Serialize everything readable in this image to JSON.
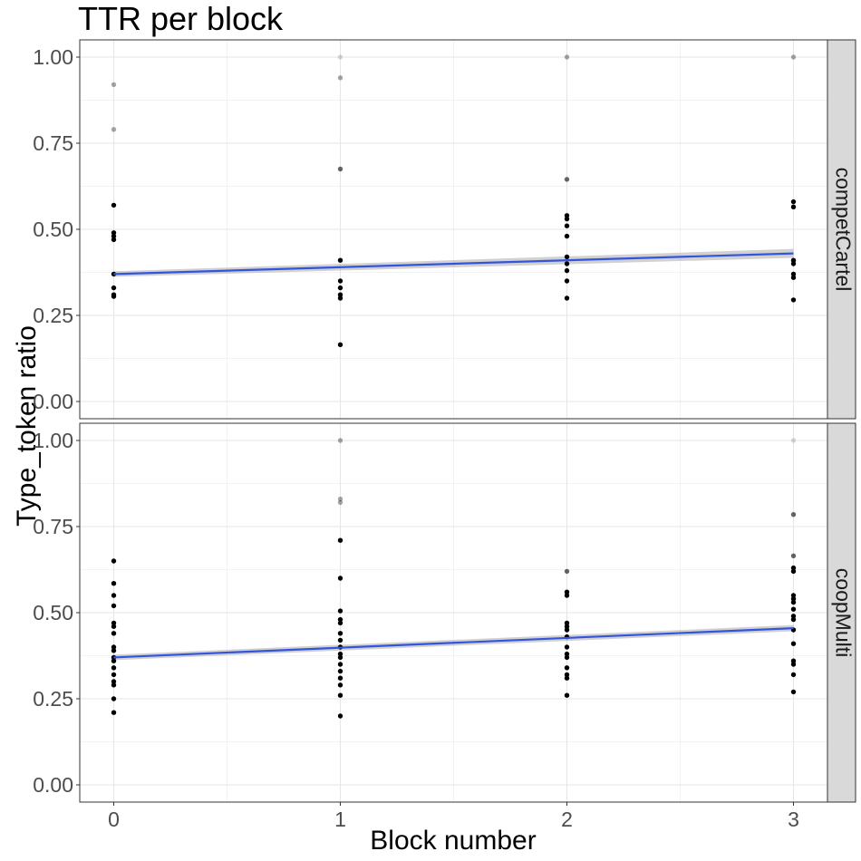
{
  "chart_data": {
    "type": "scatter",
    "title": "TTR per block",
    "xlabel": "Block number",
    "ylabel": "Type_token ratio",
    "xlim": [
      -0.15,
      3.15
    ],
    "ylim": [
      -0.05,
      1.05
    ],
    "x_ticks": [
      "0",
      "1",
      "2",
      "3"
    ],
    "y_ticks": [
      "0.00",
      "0.25",
      "0.50",
      "0.75",
      "1.00"
    ],
    "grid": true,
    "trend_color": "#3355dd",
    "panels": [
      {
        "facet": "competCartel",
        "points": [
          {
            "x": 0,
            "y": 0.92,
            "a": 0.35
          },
          {
            "x": 0,
            "y": 0.79,
            "a": 0.35
          },
          {
            "x": 0,
            "y": 0.57,
            "a": 1
          },
          {
            "x": 0,
            "y": 0.49,
            "a": 1
          },
          {
            "x": 0,
            "y": 0.48,
            "a": 1
          },
          {
            "x": 0,
            "y": 0.47,
            "a": 1
          },
          {
            "x": 0,
            "y": 0.37,
            "a": 1
          },
          {
            "x": 0,
            "y": 0.33,
            "a": 1
          },
          {
            "x": 0,
            "y": 0.31,
            "a": 1
          },
          {
            "x": 0,
            "y": 0.305,
            "a": 1
          },
          {
            "x": 1,
            "y": 1.0,
            "a": 0.15
          },
          {
            "x": 1,
            "y": 0.94,
            "a": 0.35
          },
          {
            "x": 1,
            "y": 0.675,
            "a": 0.6
          },
          {
            "x": 1,
            "y": 0.41,
            "a": 1
          },
          {
            "x": 1,
            "y": 0.35,
            "a": 1
          },
          {
            "x": 1,
            "y": 0.33,
            "a": 1
          },
          {
            "x": 1,
            "y": 0.31,
            "a": 1
          },
          {
            "x": 1,
            "y": 0.3,
            "a": 1
          },
          {
            "x": 1,
            "y": 0.165,
            "a": 1
          },
          {
            "x": 2,
            "y": 1.0,
            "a": 0.35
          },
          {
            "x": 2,
            "y": 0.645,
            "a": 0.6
          },
          {
            "x": 2,
            "y": 0.54,
            "a": 1
          },
          {
            "x": 2,
            "y": 0.53,
            "a": 1
          },
          {
            "x": 2,
            "y": 0.51,
            "a": 1
          },
          {
            "x": 2,
            "y": 0.48,
            "a": 1
          },
          {
            "x": 2,
            "y": 0.42,
            "a": 1
          },
          {
            "x": 2,
            "y": 0.4,
            "a": 1
          },
          {
            "x": 2,
            "y": 0.38,
            "a": 1
          },
          {
            "x": 2,
            "y": 0.35,
            "a": 1
          },
          {
            "x": 2,
            "y": 0.3,
            "a": 1
          },
          {
            "x": 3,
            "y": 1.0,
            "a": 0.35
          },
          {
            "x": 3,
            "y": 0.58,
            "a": 1
          },
          {
            "x": 3,
            "y": 0.565,
            "a": 1
          },
          {
            "x": 3,
            "y": 0.41,
            "a": 1
          },
          {
            "x": 3,
            "y": 0.4,
            "a": 1
          },
          {
            "x": 3,
            "y": 0.37,
            "a": 1
          },
          {
            "x": 3,
            "y": 0.36,
            "a": 1
          },
          {
            "x": 3,
            "y": 0.295,
            "a": 1
          }
        ],
        "trend": {
          "x": [
            0,
            3
          ],
          "y": [
            0.37,
            0.43
          ]
        },
        "band": {
          "lower": [
            0.362,
            0.417
          ],
          "upper": [
            0.378,
            0.443
          ]
        }
      },
      {
        "facet": "coopMulti",
        "points": [
          {
            "x": 0,
            "y": 0.65,
            "a": 1
          },
          {
            "x": 0,
            "y": 0.585,
            "a": 1
          },
          {
            "x": 0,
            "y": 0.55,
            "a": 1
          },
          {
            "x": 0,
            "y": 0.52,
            "a": 1
          },
          {
            "x": 0,
            "y": 0.47,
            "a": 1
          },
          {
            "x": 0,
            "y": 0.46,
            "a": 1
          },
          {
            "x": 0,
            "y": 0.44,
            "a": 1
          },
          {
            "x": 0,
            "y": 0.4,
            "a": 1
          },
          {
            "x": 0,
            "y": 0.39,
            "a": 1
          },
          {
            "x": 0,
            "y": 0.37,
            "a": 1
          },
          {
            "x": 0,
            "y": 0.36,
            "a": 1
          },
          {
            "x": 0,
            "y": 0.34,
            "a": 1
          },
          {
            "x": 0,
            "y": 0.32,
            "a": 1
          },
          {
            "x": 0,
            "y": 0.3,
            "a": 1
          },
          {
            "x": 0,
            "y": 0.29,
            "a": 1
          },
          {
            "x": 0,
            "y": 0.25,
            "a": 1
          },
          {
            "x": 0,
            "y": 0.21,
            "a": 1
          },
          {
            "x": 1,
            "y": 1.0,
            "a": 0.35
          },
          {
            "x": 1,
            "y": 0.83,
            "a": 0.35
          },
          {
            "x": 1,
            "y": 0.82,
            "a": 0.35
          },
          {
            "x": 1,
            "y": 0.71,
            "a": 1
          },
          {
            "x": 1,
            "y": 0.6,
            "a": 1
          },
          {
            "x": 1,
            "y": 0.505,
            "a": 1
          },
          {
            "x": 1,
            "y": 0.48,
            "a": 1
          },
          {
            "x": 1,
            "y": 0.47,
            "a": 1
          },
          {
            "x": 1,
            "y": 0.44,
            "a": 1
          },
          {
            "x": 1,
            "y": 0.42,
            "a": 1
          },
          {
            "x": 1,
            "y": 0.4,
            "a": 1
          },
          {
            "x": 1,
            "y": 0.38,
            "a": 1
          },
          {
            "x": 1,
            "y": 0.37,
            "a": 1
          },
          {
            "x": 1,
            "y": 0.35,
            "a": 1
          },
          {
            "x": 1,
            "y": 0.33,
            "a": 1
          },
          {
            "x": 1,
            "y": 0.31,
            "a": 1
          },
          {
            "x": 1,
            "y": 0.29,
            "a": 1
          },
          {
            "x": 1,
            "y": 0.26,
            "a": 1
          },
          {
            "x": 1,
            "y": 0.2,
            "a": 1
          },
          {
            "x": 2,
            "y": 0.62,
            "a": 0.6
          },
          {
            "x": 2,
            "y": 0.56,
            "a": 1
          },
          {
            "x": 2,
            "y": 0.55,
            "a": 1
          },
          {
            "x": 2,
            "y": 0.47,
            "a": 1
          },
          {
            "x": 2,
            "y": 0.46,
            "a": 1
          },
          {
            "x": 2,
            "y": 0.45,
            "a": 1
          },
          {
            "x": 2,
            "y": 0.43,
            "a": 1
          },
          {
            "x": 2,
            "y": 0.4,
            "a": 1
          },
          {
            "x": 2,
            "y": 0.38,
            "a": 1
          },
          {
            "x": 2,
            "y": 0.37,
            "a": 1
          },
          {
            "x": 2,
            "y": 0.34,
            "a": 1
          },
          {
            "x": 2,
            "y": 0.32,
            "a": 1
          },
          {
            "x": 2,
            "y": 0.31,
            "a": 1
          },
          {
            "x": 2,
            "y": 0.26,
            "a": 1
          },
          {
            "x": 3,
            "y": 1.0,
            "a": 0.15
          },
          {
            "x": 3,
            "y": 0.785,
            "a": 0.6
          },
          {
            "x": 3,
            "y": 0.665,
            "a": 0.6
          },
          {
            "x": 3,
            "y": 0.63,
            "a": 1
          },
          {
            "x": 3,
            "y": 0.62,
            "a": 1
          },
          {
            "x": 3,
            "y": 0.55,
            "a": 1
          },
          {
            "x": 3,
            "y": 0.54,
            "a": 1
          },
          {
            "x": 3,
            "y": 0.53,
            "a": 1
          },
          {
            "x": 3,
            "y": 0.51,
            "a": 1
          },
          {
            "x": 3,
            "y": 0.49,
            "a": 1
          },
          {
            "x": 3,
            "y": 0.48,
            "a": 1
          },
          {
            "x": 3,
            "y": 0.45,
            "a": 1
          },
          {
            "x": 3,
            "y": 0.41,
            "a": 1
          },
          {
            "x": 3,
            "y": 0.36,
            "a": 1
          },
          {
            "x": 3,
            "y": 0.35,
            "a": 1
          },
          {
            "x": 3,
            "y": 0.32,
            "a": 1
          },
          {
            "x": 3,
            "y": 0.27,
            "a": 1
          }
        ],
        "trend": {
          "x": [
            0,
            3
          ],
          "y": [
            0.37,
            0.455
          ]
        },
        "band": {
          "lower": [
            0.362,
            0.446
          ],
          "upper": [
            0.378,
            0.464
          ]
        }
      }
    ]
  }
}
